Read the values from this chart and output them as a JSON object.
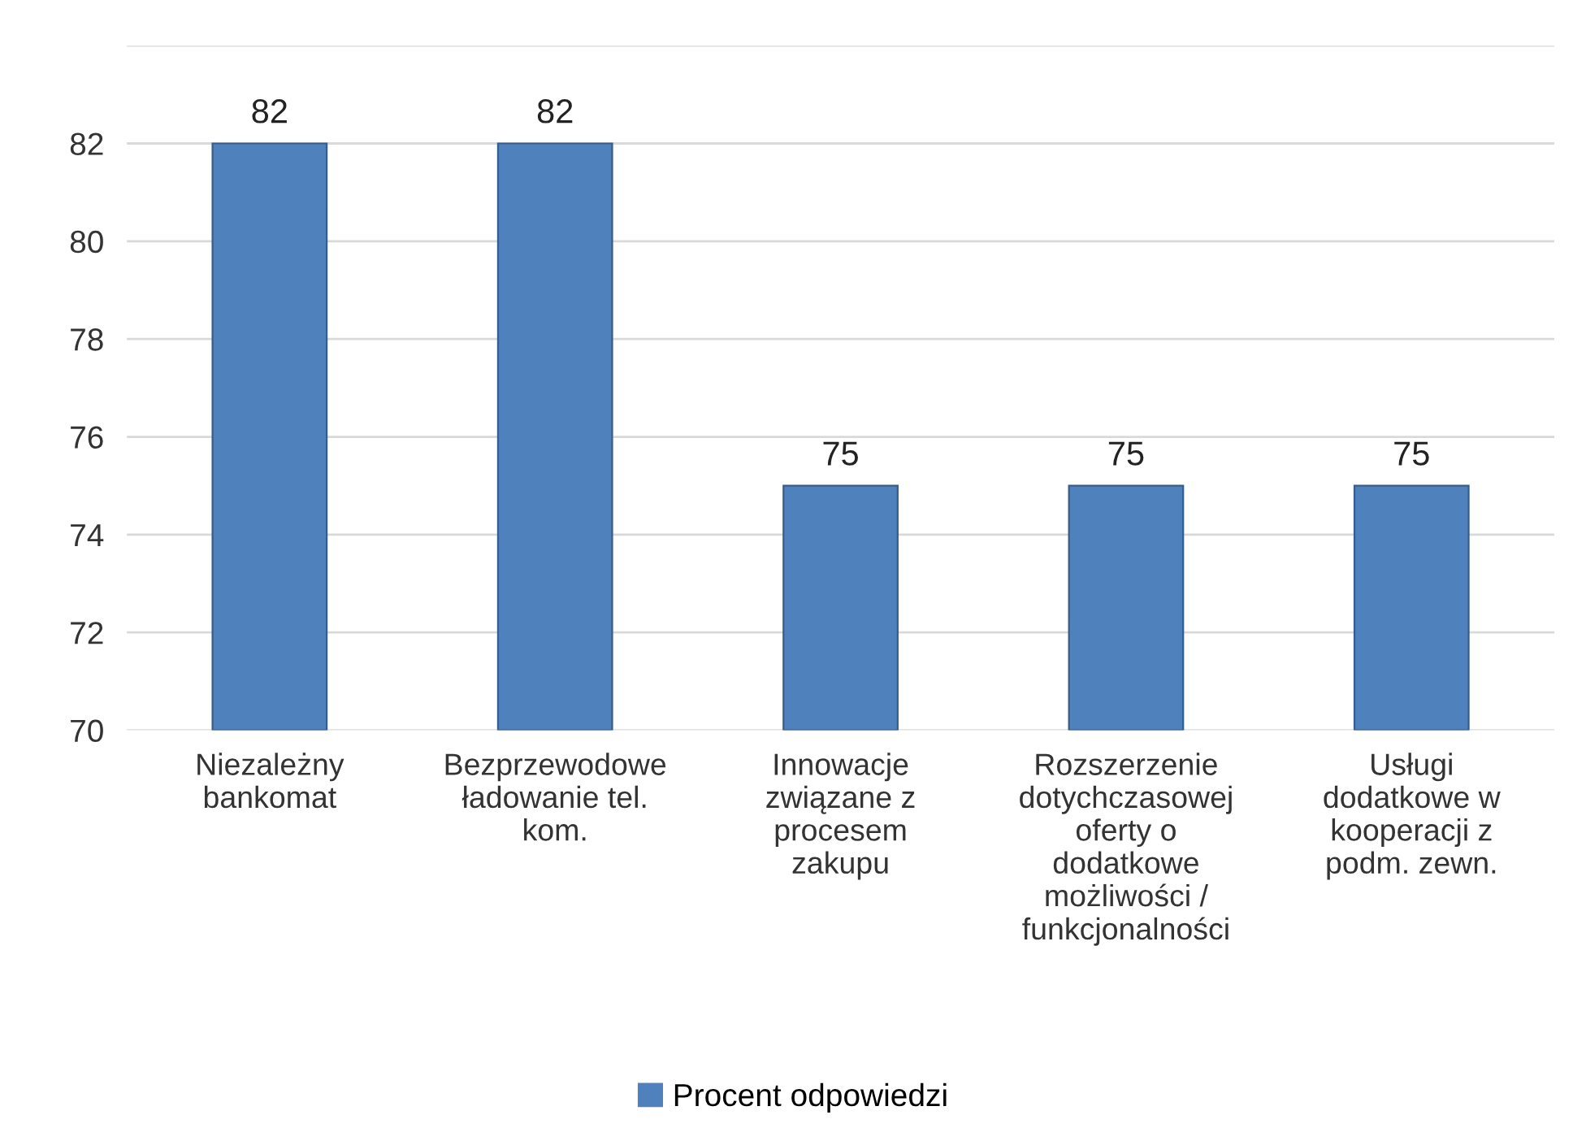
{
  "chart_data": {
    "type": "bar",
    "categories": [
      "Niezależny\nbankomat",
      "Bezprzewodowe\nładowanie tel.\nkom.",
      "Innowacje\nzwiązane z\nprocesem\nzakupu",
      "Rozszerzenie\ndotychczasowej\noferty o\ndodatkowe\nmożliwości /\nfunkcjonalności",
      "Usługi\ndodatkowe w\nkooperacji z\npodm. zewn."
    ],
    "series": [
      {
        "name": "Procent odpowiedzi",
        "color": "#4f81bd",
        "values": [
          82,
          82,
          75,
          75,
          75
        ]
      }
    ],
    "ylim": [
      70,
      84
    ],
    "yticks": [
      70,
      72,
      74,
      76,
      78,
      80,
      82,
      {
        "value": 84,
        "label": null
      }
    ],
    "grid": "y",
    "legend": "bottom",
    "data_labels": true
  }
}
